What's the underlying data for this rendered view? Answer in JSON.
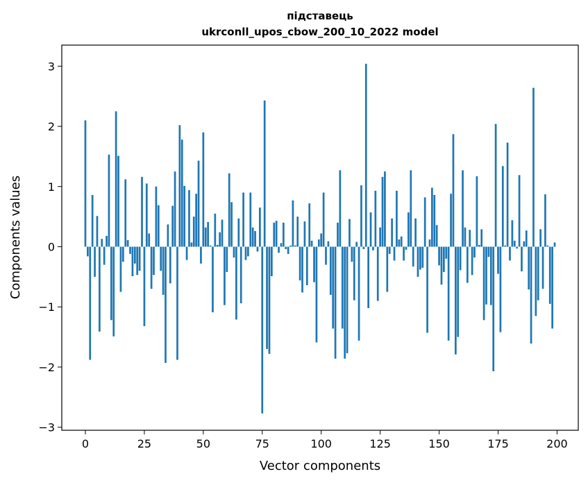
{
  "chart_data": {
    "type": "bar",
    "title_line1": "підставець",
    "title_line2": "ukrconll_upos_cbow_200_10_2022 model",
    "xlabel": "Vector components",
    "ylabel": "Components values",
    "xlim": [
      -10,
      209
    ],
    "ylim": [
      -3.05,
      3.35
    ],
    "xticks": [
      0,
      25,
      50,
      75,
      100,
      125,
      150,
      175,
      200
    ],
    "yticks": [
      -3,
      -2,
      -1,
      0,
      1,
      2,
      3
    ],
    "xtick_labels": [
      "0",
      "25",
      "50",
      "75",
      "100",
      "125",
      "150",
      "175",
      "200"
    ],
    "ytick_labels": [
      "−3",
      "−2",
      "−1",
      "0",
      "1",
      "2",
      "3"
    ],
    "bar_color": "#1f77b4",
    "values": [
      2.1,
      -0.16,
      -1.88,
      0.86,
      -0.5,
      0.51,
      -1.41,
      0.13,
      -0.3,
      0.18,
      1.53,
      -1.22,
      -1.49,
      2.25,
      1.51,
      -0.75,
      -0.25,
      1.12,
      0.11,
      -0.12,
      -0.49,
      -0.28,
      -0.47,
      -0.4,
      1.16,
      -1.32,
      1.05,
      0.22,
      -0.7,
      -0.47,
      1.0,
      0.69,
      -0.4,
      -0.8,
      -1.93,
      0.37,
      -0.61,
      0.68,
      1.25,
      -1.88,
      2.02,
      1.78,
      1.01,
      -0.22,
      0.94,
      0.07,
      0.5,
      0.88,
      1.43,
      -0.28,
      1.9,
      0.32,
      0.41,
      0.02,
      -1.09,
      0.55,
      0.03,
      0.24,
      0.45,
      -0.97,
      -0.42,
      1.22,
      0.74,
      -0.18,
      -1.21,
      0.47,
      -0.94,
      0.9,
      -0.22,
      -0.16,
      0.9,
      0.32,
      0.26,
      -0.08,
      0.65,
      -2.77,
      2.43,
      -1.7,
      -1.78,
      -0.49,
      0.4,
      0.43,
      -0.1,
      0.06,
      0.4,
      -0.04,
      -0.12,
      0.02,
      0.77,
      0.02,
      0.5,
      -0.56,
      -0.76,
      0.42,
      -0.64,
      0.72,
      0.1,
      -0.59,
      -1.59,
      0.12,
      0.22,
      0.9,
      -0.3,
      0.09,
      -0.8,
      -1.36,
      -1.86,
      0.4,
      1.27,
      -1.36,
      -1.86,
      -1.77,
      0.46,
      -0.25,
      -0.89,
      0.08,
      -1.56,
      1.02,
      -0.04,
      3.04,
      -1.02,
      0.57,
      -0.06,
      0.93,
      -0.9,
      0.32,
      1.16,
      1.25,
      -0.75,
      -0.12,
      0.47,
      -0.23,
      0.93,
      0.12,
      0.17,
      -0.23,
      -0.05,
      0.57,
      1.27,
      -0.33,
      0.47,
      -0.5,
      -0.38,
      -0.35,
      0.82,
      -1.43,
      0.12,
      0.98,
      0.86,
      0.36,
      -0.31,
      -0.63,
      -0.42,
      -0.2,
      -1.56,
      0.88,
      1.87,
      -1.79,
      -1.5,
      -0.39,
      1.27,
      0.32,
      -0.6,
      0.28,
      -0.47,
      -0.18,
      1.17,
      0.03,
      0.29,
      -1.22,
      -0.96,
      -0.17,
      -0.97,
      -2.07,
      2.04,
      -0.45,
      -1.42,
      1.34,
      0.02,
      1.73,
      -0.23,
      0.44,
      0.1,
      -0.03,
      1.19,
      -0.41,
      0.09,
      0.27,
      -0.71,
      -1.61,
      2.64,
      -1.15,
      -0.89,
      0.29,
      -0.7,
      0.87,
      0.02,
      -0.95,
      -1.36,
      0.07
    ]
  }
}
